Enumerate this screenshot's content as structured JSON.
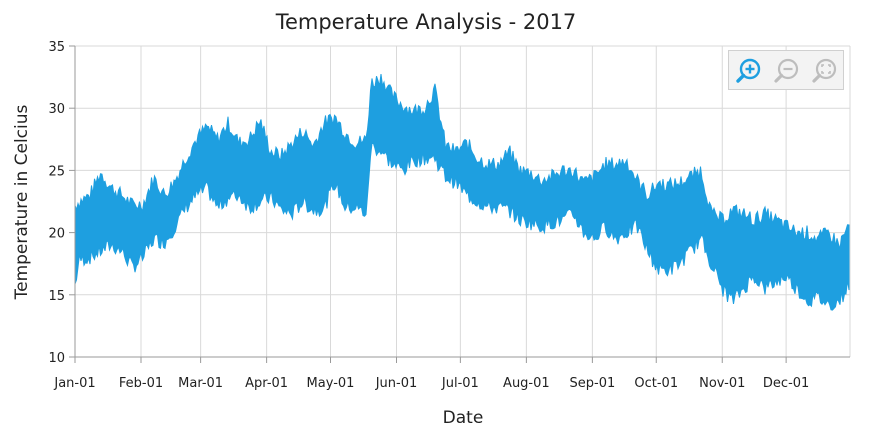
{
  "chart_data": {
    "type": "area",
    "title": "Temperature Analysis - 2017",
    "xlabel": "Date",
    "ylabel": "Temperature in Celcius",
    "ylim": [
      10,
      35
    ],
    "yticks": [
      "10",
      "15",
      "20",
      "25",
      "30",
      "35"
    ],
    "xlim": [
      "2017-01-01",
      "2017-12-31"
    ],
    "xticks": [
      {
        "date": "2017-01-01",
        "label": "Jan-01"
      },
      {
        "date": "2017-02-01",
        "label": "Feb-01"
      },
      {
        "date": "2017-03-01",
        "label": "Mar-01"
      },
      {
        "date": "2017-04-01",
        "label": "Apr-01"
      },
      {
        "date": "2017-05-01",
        "label": "May-01"
      },
      {
        "date": "2017-06-01",
        "label": "Jun-01"
      },
      {
        "date": "2017-07-01",
        "label": "Jul-01"
      },
      {
        "date": "2017-08-01",
        "label": "Aug-01"
      },
      {
        "date": "2017-09-01",
        "label": "Sep-01"
      },
      {
        "date": "2017-10-01",
        "label": "Oct-01"
      },
      {
        "date": "2017-11-01",
        "label": "Nov-01"
      },
      {
        "date": "2017-12-01",
        "label": "Dec-01"
      }
    ],
    "grid": true,
    "color": "#1e9fe0",
    "series": [
      {
        "x": [
          "2017-01-01",
          "2017-01-03",
          "2017-01-08",
          "2017-01-13",
          "2017-01-18",
          "2017-01-23",
          "2017-01-28",
          "2017-02-02",
          "2017-02-07",
          "2017-02-12",
          "2017-02-17",
          "2017-02-22",
          "2017-02-27",
          "2017-03-04",
          "2017-03-09",
          "2017-03-14",
          "2017-03-19",
          "2017-03-24",
          "2017-03-29",
          "2017-04-03",
          "2017-04-08",
          "2017-04-13",
          "2017-04-18",
          "2017-04-23",
          "2017-04-28",
          "2017-05-03",
          "2017-05-08",
          "2017-05-13",
          "2017-05-18",
          "2017-05-20",
          "2017-05-25",
          "2017-05-30",
          "2017-06-04",
          "2017-06-09",
          "2017-06-14",
          "2017-06-19",
          "2017-06-24",
          "2017-06-29",
          "2017-07-04",
          "2017-07-09",
          "2017-07-14",
          "2017-07-19",
          "2017-07-24",
          "2017-07-29",
          "2017-08-03",
          "2017-08-08",
          "2017-08-13",
          "2017-08-18",
          "2017-08-23",
          "2017-08-28",
          "2017-09-02",
          "2017-09-07",
          "2017-09-12",
          "2017-09-17",
          "2017-09-22",
          "2017-09-27",
          "2017-10-02",
          "2017-10-07",
          "2017-10-12",
          "2017-10-17",
          "2017-10-22",
          "2017-10-27",
          "2017-11-01",
          "2017-11-06",
          "2017-11-11",
          "2017-11-16",
          "2017-11-21",
          "2017-11-26",
          "2017-12-01",
          "2017-12-06",
          "2017-12-11",
          "2017-12-16",
          "2017-12-21",
          "2017-12-26",
          "2017-12-31"
        ],
        "high": [
          22.2,
          22.5,
          23.0,
          24.8,
          23.6,
          23.0,
          22.2,
          22.3,
          24.4,
          23.0,
          24.2,
          26.0,
          27.5,
          28.5,
          27.5,
          28.8,
          27.2,
          27.5,
          29.0,
          26.5,
          26.2,
          27.2,
          28.2,
          27.0,
          28.8,
          29.3,
          28.0,
          27.2,
          27.5,
          32.0,
          32.5,
          31.0,
          30.2,
          29.8,
          30.0,
          31.5,
          27.0,
          26.5,
          27.2,
          26.0,
          25.5,
          25.5,
          26.5,
          25.0,
          24.8,
          24.2,
          24.5,
          25.0,
          25.0,
          24.0,
          24.5,
          25.5,
          25.5,
          25.8,
          24.2,
          23.0,
          24.0,
          23.8,
          24.0,
          24.5,
          25.0,
          21.5,
          21.0,
          21.8,
          21.5,
          21.0,
          21.5,
          21.0,
          20.5,
          20.0,
          20.0,
          19.5,
          20.0,
          19.0,
          20.8
        ],
        "low": [
          15.8,
          17.8,
          18.0,
          18.5,
          19.0,
          18.5,
          17.2,
          18.0,
          19.5,
          19.2,
          20.5,
          22.0,
          23.0,
          23.5,
          22.0,
          22.8,
          23.0,
          22.0,
          22.5,
          22.8,
          21.8,
          21.5,
          22.5,
          21.8,
          22.0,
          24.0,
          22.0,
          22.0,
          21.5,
          27.0,
          26.5,
          25.5,
          25.0,
          25.8,
          26.0,
          26.0,
          24.5,
          24.0,
          23.0,
          22.5,
          22.0,
          22.0,
          21.8,
          21.0,
          20.8,
          20.5,
          20.8,
          21.0,
          21.5,
          20.0,
          19.5,
          20.5,
          19.5,
          20.0,
          20.5,
          18.5,
          17.0,
          17.0,
          17.5,
          18.5,
          19.5,
          17.5,
          15.5,
          14.5,
          15.5,
          16.5,
          15.5,
          16.0,
          16.5,
          15.5,
          14.5,
          14.8,
          14.2,
          14.5,
          16.0
        ]
      }
    ]
  },
  "toolbar": {
    "zoom_in_icon": "zoom-in-icon",
    "zoom_out_icon": "zoom-out-icon",
    "reset_zoom_icon": "reset-zoom-icon"
  }
}
